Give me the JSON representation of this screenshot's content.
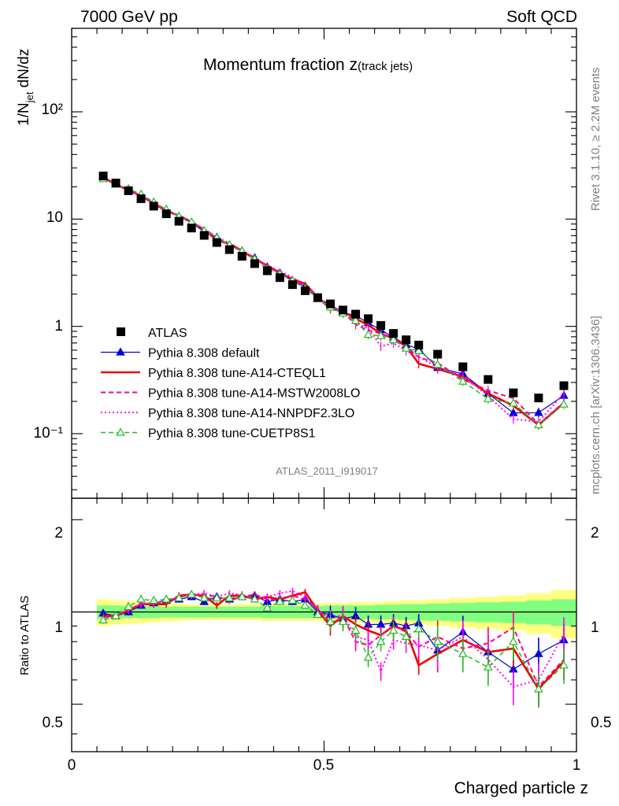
{
  "header": {
    "left": "7000 GeV pp",
    "right": "Soft QCD"
  },
  "plot_title": {
    "main": "Momentum fraction ",
    "z": "z",
    "sub": "(track jets)"
  },
  "side": {
    "rivet": "Rivet 3.1.10, ≥ 2.2M events",
    "mcplots": "mcplots.cern.ch [arXiv:1306.3436]"
  },
  "watermark": "ATLAS_2011_I919017",
  "axes": {
    "xlabel": "Charged particle z",
    "ylabel_main": "1/N",
    "ylabel_sub": "jet",
    "ylabel_tail": " dN/dz",
    "ratio_ylabel": "Ratio to ATLAS",
    "x_ticks": [
      "0",
      "0.5",
      "1"
    ],
    "top_ticks": [
      "10⁻¹",
      "1",
      "10",
      "10²"
    ],
    "ratio_ticks": [
      "0.5",
      "1",
      "2"
    ]
  },
  "colors": {
    "data": "#000000",
    "default": "#0000dd",
    "cteql1": "#ee0000",
    "mstw": "#ff0080",
    "nnpdf": "#ff00ff",
    "cuetp8s1": "#22bb22",
    "band_inner": "#80ff80",
    "band_outer": "#ffff80"
  },
  "chart_data": [
    {
      "type": "scatter",
      "panel": "main",
      "title": "Momentum fraction z(track jets)",
      "xlabel": "Charged particle z",
      "ylabel": "1/Njet dN/dz",
      "xlim": [
        0,
        1
      ],
      "ylim": [
        0.025,
        600
      ],
      "y_scale": "log",
      "legend_position": "lower-left",
      "x": [
        0.0625,
        0.0875,
        0.1125,
        0.1375,
        0.1625,
        0.1875,
        0.2125,
        0.2375,
        0.2625,
        0.2875,
        0.3125,
        0.3375,
        0.3625,
        0.3875,
        0.4125,
        0.4375,
        0.4625,
        0.4875,
        0.5125,
        0.5375,
        0.5625,
        0.5875,
        0.6125,
        0.6375,
        0.6625,
        0.6875,
        0.725,
        0.775,
        0.825,
        0.875,
        0.925,
        0.975
      ],
      "series": [
        {
          "name": "ATLAS",
          "key": "data",
          "style": "square",
          "values": [
            25.2,
            21.7,
            18.4,
            15.5,
            13.2,
            11.2,
            9.55,
            8.25,
            7.05,
            6.05,
            5.2,
            4.5,
            3.85,
            3.3,
            2.85,
            2.45,
            2.15,
            1.85,
            1.62,
            1.42,
            1.3,
            1.18,
            1.02,
            0.86,
            0.75,
            0.67,
            0.55,
            0.42,
            0.32,
            0.24,
            0.215,
            0.28
          ]
        },
        {
          "name": "Pythia 8.308 default",
          "key": "default",
          "style": "line-filled-triangle",
          "ratio": [
            0.99,
            0.97,
            1.0,
            1.05,
            1.07,
            1.09,
            1.1,
            1.12,
            1.08,
            1.12,
            1.1,
            1.12,
            1.13,
            1.08,
            1.1,
            1.08,
            1.1,
            1.0,
            0.98,
            0.95,
            0.97,
            0.91,
            0.91,
            0.92,
            0.9,
            0.92,
            0.75,
            0.86,
            0.74,
            0.65,
            0.73,
            0.81
          ]
        },
        {
          "name": "Pythia 8.308 tune-A14-CTEQL1",
          "key": "cteql1",
          "style": "solid-thick",
          "ratio": [
            0.97,
            0.97,
            1.01,
            1.06,
            1.06,
            1.06,
            1.13,
            1.14,
            1.13,
            1.05,
            1.13,
            1.13,
            1.1,
            1.12,
            1.1,
            1.13,
            1.16,
            1.01,
            0.9,
            0.97,
            0.91,
            0.87,
            0.84,
            0.9,
            0.87,
            0.67,
            0.73,
            0.81,
            0.74,
            0.76,
            0.56,
            0.69
          ]
        },
        {
          "name": "Pythia 8.308 tune-A14-MSTW2008LO",
          "key": "mstw",
          "style": "dashed",
          "ratio": [
            0.96,
            0.98,
            1.02,
            1.06,
            1.07,
            1.08,
            1.12,
            1.13,
            1.14,
            1.12,
            1.09,
            1.12,
            1.14,
            1.1,
            1.1,
            1.13,
            1.1,
            1.03,
            0.92,
            0.96,
            0.8,
            0.78,
            0.84,
            0.9,
            0.86,
            0.77,
            0.83,
            0.76,
            0.79,
            0.89,
            0.57,
            0.7
          ]
        },
        {
          "name": "Pythia 8.308 tune-A14-NNPDF2.3LO",
          "key": "nnpdf",
          "style": "dotted",
          "ratio": [
            0.95,
            0.97,
            1.02,
            1.06,
            1.07,
            1.09,
            1.12,
            1.14,
            1.15,
            1.12,
            1.15,
            1.14,
            1.1,
            1.12,
            1.15,
            1.17,
            1.12,
            1.01,
            0.95,
            0.98,
            0.83,
            0.81,
            0.64,
            0.81,
            0.79,
            0.78,
            0.75,
            0.83,
            0.7,
            0.57,
            0.6,
            0.85
          ]
        },
        {
          "name": "Pythia 8.308 tune-CUETP8S1",
          "key": "cuetp8s1",
          "style": "dashed-open-triangle",
          "ratio": [
            0.94,
            0.97,
            1.04,
            1.1,
            1.09,
            1.1,
            1.11,
            1.14,
            1.11,
            1.11,
            1.11,
            1.12,
            1.1,
            1.03,
            1.08,
            1.09,
            1.05,
            0.98,
            0.93,
            0.93,
            0.87,
            0.71,
            0.8,
            0.87,
            0.83,
            0.88,
            0.8,
            0.73,
            0.66,
            0.8,
            0.56,
            0.67
          ]
        }
      ]
    },
    {
      "type": "line",
      "panel": "ratio",
      "ylabel": "Ratio to ATLAS",
      "xlabel": "Charged particle z",
      "xlim": [
        0,
        1
      ],
      "ylim": [
        0.35,
        2.35
      ],
      "y_scale": "log",
      "reference_line": 1,
      "band_inner_halfwidth": [
        0.05,
        0.05,
        0.045,
        0.045,
        0.045,
        0.04,
        0.04,
        0.04,
        0.04,
        0.04,
        0.04,
        0.04,
        0.04,
        0.045,
        0.045,
        0.045,
        0.045,
        0.045,
        0.05,
        0.05,
        0.05,
        0.05,
        0.055,
        0.055,
        0.06,
        0.06,
        0.065,
        0.07,
        0.075,
        0.08,
        0.09,
        0.1
      ],
      "band_outer_halfwidth": [
        0.1,
        0.09,
        0.085,
        0.08,
        0.075,
        0.07,
        0.065,
        0.06,
        0.06,
        0.06,
        0.06,
        0.06,
        0.06,
        0.065,
        0.065,
        0.065,
        0.065,
        0.065,
        0.07,
        0.07,
        0.075,
        0.075,
        0.08,
        0.085,
        0.09,
        0.09,
        0.1,
        0.11,
        0.12,
        0.13,
        0.15,
        0.18
      ]
    }
  ]
}
